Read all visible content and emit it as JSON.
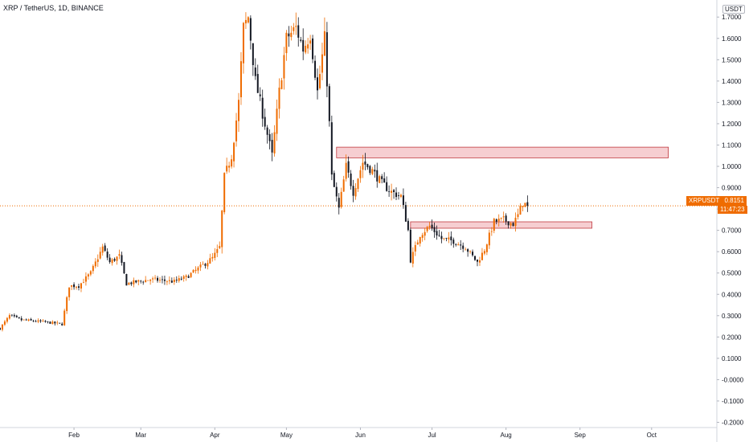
{
  "header": {
    "title": "XRP / TetherUS, 1D, BINANCE",
    "unit": "USDT"
  },
  "price_label": {
    "symbol": "XRPUSDT",
    "price": "0.8151",
    "countdown": "11:47:23"
  },
  "colors": {
    "up": "#ef6c00",
    "down": "#131722",
    "zone_fill": "#f5c6c9",
    "zone_border": "#c0393f",
    "price_line": "#ef6c00",
    "badge": "#ef6c00"
  },
  "chart_data": {
    "type": "candlestick",
    "y_ticks": [
      "1.7000",
      "1.6000",
      "1.5000",
      "1.4000",
      "1.3000",
      "1.2000",
      "1.1000",
      "1.0000",
      "0.9000",
      "0.8000",
      "0.7000",
      "0.6000",
      "0.5000",
      "0.4000",
      "0.3000",
      "0.2000",
      "0.1000",
      "-0.0000",
      "-0.1000",
      "-0.2000"
    ],
    "x_ticks": [
      {
        "label": "Feb",
        "day": 31
      },
      {
        "label": "Mar",
        "day": 59
      },
      {
        "label": "Apr",
        "day": 90
      },
      {
        "label": "May",
        "day": 120
      },
      {
        "label": "Jun",
        "day": 151
      },
      {
        "label": "Jul",
        "day": 181
      },
      {
        "label": "Aug",
        "day": 212
      },
      {
        "label": "Sep",
        "day": 243
      },
      {
        "label": "Oct",
        "day": 273
      }
    ],
    "ylim": [
      -0.24,
      1.78
    ],
    "current_price": 0.8151,
    "zones": [
      {
        "start": "2021-05-22",
        "end": "2021-10-08",
        "low": 1.04,
        "high": 1.09
      },
      {
        "start": "2021-06-22",
        "end": "2021-09-06",
        "low": 0.71,
        "high": 0.74
      }
    ],
    "anchors": [
      [
        "2021-01-01",
        0.24
      ],
      [
        "2021-01-05",
        0.3
      ],
      [
        "2021-01-10",
        0.28
      ],
      [
        "2021-01-20",
        0.27
      ],
      [
        "2021-01-27",
        0.26
      ],
      [
        "2021-01-30",
        0.44
      ],
      [
        "2021-02-03",
        0.44
      ],
      [
        "2021-02-08",
        0.5
      ],
      [
        "2021-02-13",
        0.62
      ],
      [
        "2021-02-16",
        0.55
      ],
      [
        "2021-02-20",
        0.58
      ],
      [
        "2021-02-23",
        0.45
      ],
      [
        "2021-03-05",
        0.47
      ],
      [
        "2021-03-15",
        0.46
      ],
      [
        "2021-03-20",
        0.48
      ],
      [
        "2021-03-25",
        0.52
      ],
      [
        "2021-03-31",
        0.57
      ],
      [
        "2021-04-03",
        0.62
      ],
      [
        "2021-04-05",
        0.95
      ],
      [
        "2021-04-08",
        1.05
      ],
      [
        "2021-04-11",
        1.3
      ],
      [
        "2021-04-13",
        1.65
      ],
      [
        "2021-04-15",
        1.7
      ],
      [
        "2021-04-18",
        1.4
      ],
      [
        "2021-04-22",
        1.2
      ],
      [
        "2021-04-25",
        1.05
      ],
      [
        "2021-04-28",
        1.35
      ],
      [
        "2021-05-01",
        1.6
      ],
      [
        "2021-05-05",
        1.65
      ],
      [
        "2021-05-08",
        1.55
      ],
      [
        "2021-05-11",
        1.62
      ],
      [
        "2021-05-14",
        1.35
      ],
      [
        "2021-05-17",
        1.6
      ],
      [
        "2021-05-19",
        1.2
      ],
      [
        "2021-05-20",
        0.95
      ],
      [
        "2021-05-23",
        0.8
      ],
      [
        "2021-05-26",
        1.0
      ],
      [
        "2021-05-29",
        0.88
      ],
      [
        "2021-06-02",
        1.02
      ],
      [
        "2021-06-06",
        0.98
      ],
      [
        "2021-06-10",
        0.92
      ],
      [
        "2021-06-14",
        0.88
      ],
      [
        "2021-06-18",
        0.86
      ],
      [
        "2021-06-21",
        0.7
      ],
      [
        "2021-06-22",
        0.56
      ],
      [
        "2021-06-26",
        0.68
      ],
      [
        "2021-06-30",
        0.72
      ],
      [
        "2021-07-05",
        0.66
      ],
      [
        "2021-07-10",
        0.65
      ],
      [
        "2021-07-15",
        0.62
      ],
      [
        "2021-07-20",
        0.55
      ],
      [
        "2021-07-23",
        0.61
      ],
      [
        "2021-07-27",
        0.74
      ],
      [
        "2021-07-31",
        0.75
      ],
      [
        "2021-08-04",
        0.73
      ],
      [
        "2021-08-06",
        0.77
      ],
      [
        "2021-08-08",
        0.83
      ],
      [
        "2021-08-10",
        0.8151
      ]
    ]
  }
}
